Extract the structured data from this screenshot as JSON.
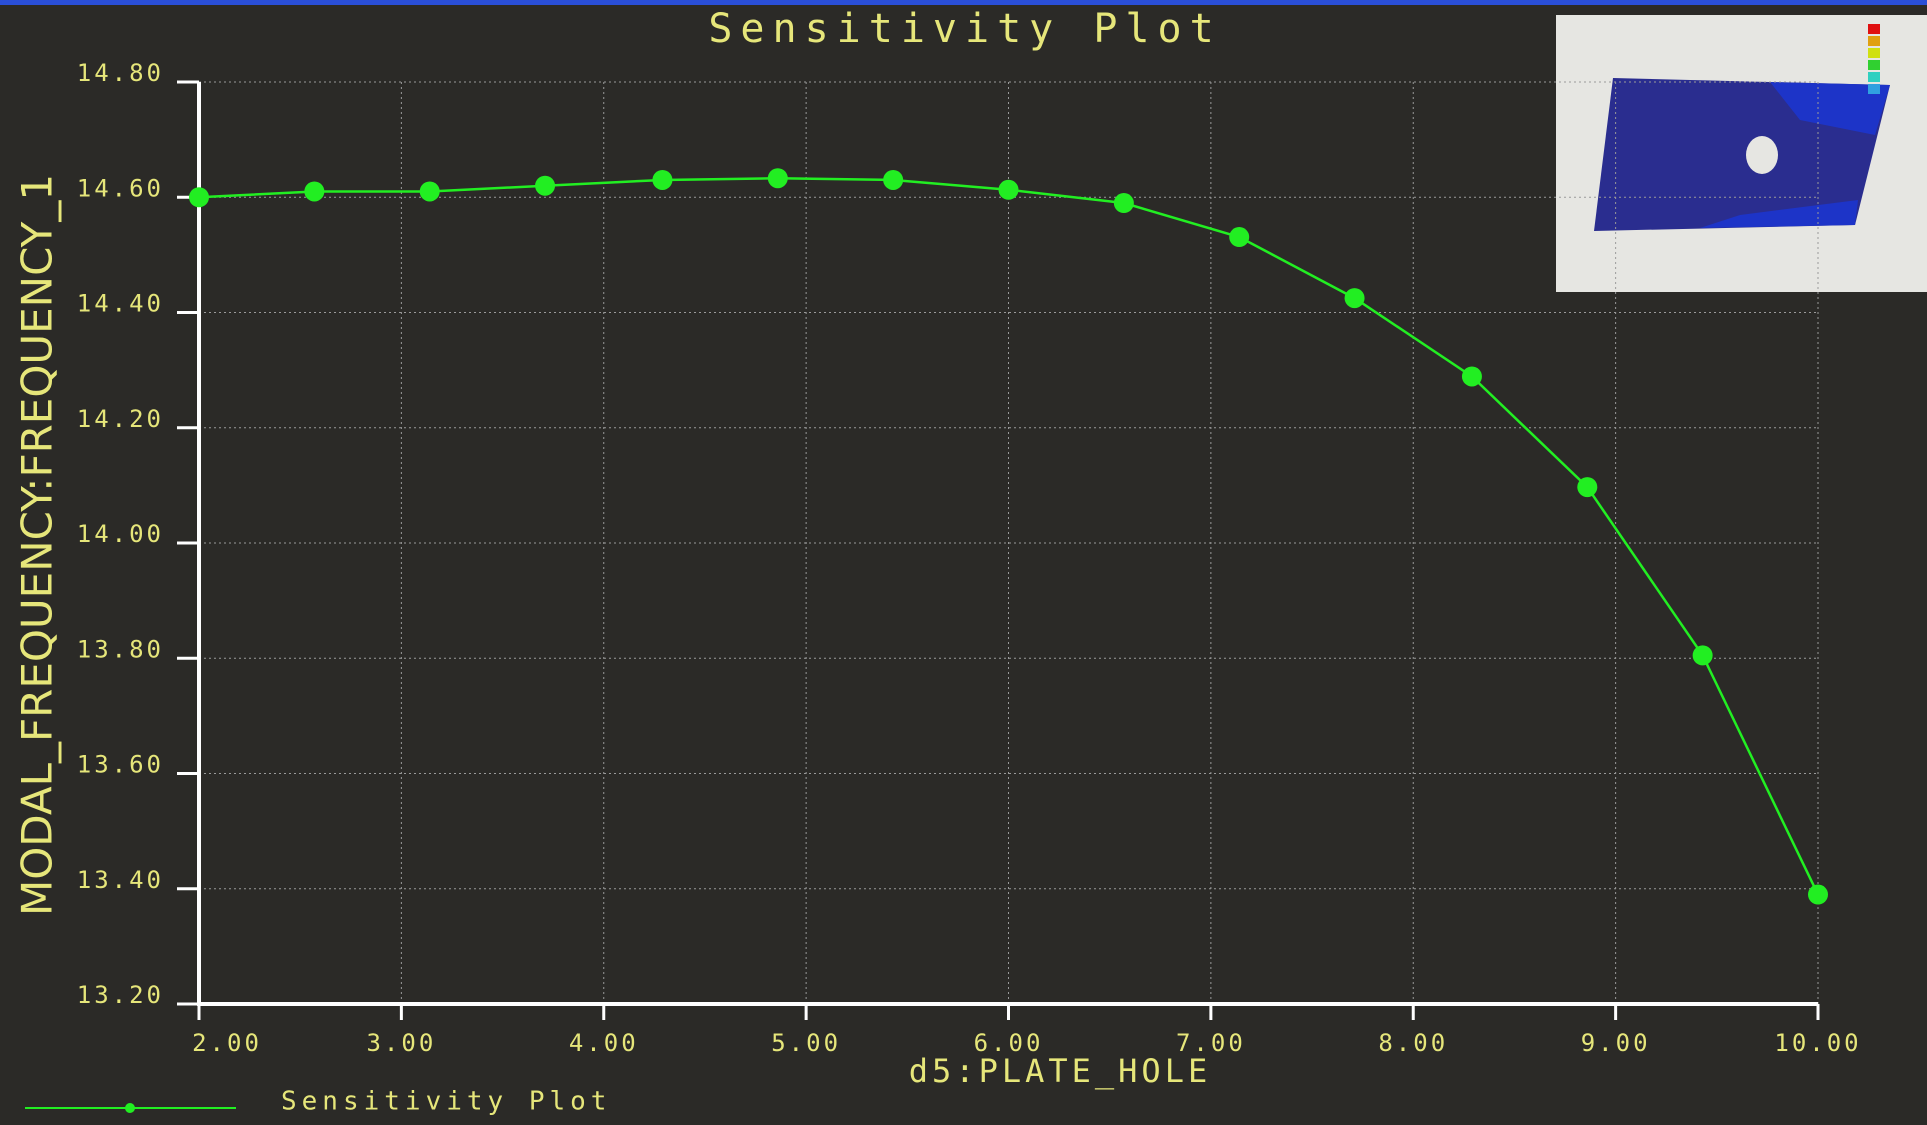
{
  "chart_data": {
    "type": "line",
    "title": "Sensitivity Plot",
    "x_label": "d5:PLATE_HOLE",
    "y_label": "MODAL_FREQUENCY:FREQUENCY_1",
    "x": [
      2.0,
      2.57,
      3.14,
      3.71,
      4.29,
      4.86,
      5.43,
      6.0,
      6.57,
      7.14,
      7.71,
      8.29,
      8.86,
      9.43,
      10.0
    ],
    "series": [
      {
        "name": "Sensitivity Plot",
        "color": "#22ee22",
        "values": [
          14.6,
          14.61,
          14.61,
          14.62,
          14.63,
          14.633,
          14.63,
          14.613,
          14.59,
          14.531,
          14.425,
          14.289,
          14.097,
          13.805,
          13.39
        ]
      }
    ],
    "xlim": [
      2,
      10
    ],
    "xticks": [
      {
        "value": 2,
        "label": "2.00"
      },
      {
        "value": 3,
        "label": "3.00"
      },
      {
        "value": 4,
        "label": "4.00"
      },
      {
        "value": 5,
        "label": "5.00"
      },
      {
        "value": 6,
        "label": "6.00"
      },
      {
        "value": 7,
        "label": "7.00"
      },
      {
        "value": 8,
        "label": "8.00"
      },
      {
        "value": 9,
        "label": "9.00"
      },
      {
        "value": 10,
        "label": "10.00"
      }
    ],
    "ylim": [
      13.2,
      14.8
    ],
    "yticks": [
      {
        "value": 13.2,
        "label": "13.20"
      },
      {
        "value": 13.4,
        "label": "13.40"
      },
      {
        "value": 13.6,
        "label": "13.60"
      },
      {
        "value": 13.8,
        "label": "13.80"
      },
      {
        "value": 14.0,
        "label": "14.00"
      },
      {
        "value": 14.2,
        "label": "14.20"
      },
      {
        "value": 14.4,
        "label": "14.40"
      },
      {
        "value": 14.6,
        "label": "14.60"
      },
      {
        "value": 14.8,
        "label": "14.80"
      }
    ],
    "grid": true
  }
}
